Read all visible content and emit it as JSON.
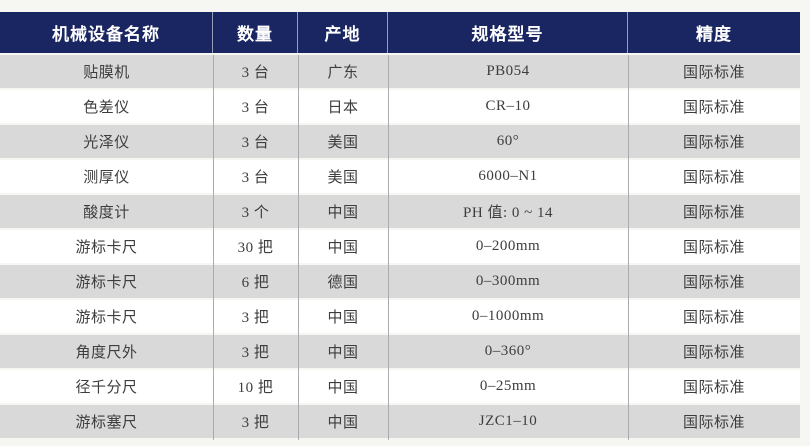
{
  "table": {
    "columns": [
      {
        "label": "机械设备名称"
      },
      {
        "label": "数量"
      },
      {
        "label": "产地"
      },
      {
        "label": "规格型号"
      },
      {
        "label": "精度"
      }
    ],
    "rows": [
      {
        "name": "贴膜机",
        "quantity": "3 台",
        "origin": "广东",
        "model": "PB054",
        "precision": "国际标准"
      },
      {
        "name": "色差仪",
        "quantity": "3 台",
        "origin": "日本",
        "model": "CR–10",
        "precision": "国际标准"
      },
      {
        "name": "光泽仪",
        "quantity": "3 台",
        "origin": "美国",
        "model": "60°",
        "precision": "国际标准"
      },
      {
        "name": "测厚仪",
        "quantity": "3 台",
        "origin": "美国",
        "model": "6000–N1",
        "precision": "国际标准"
      },
      {
        "name": "酸度计",
        "quantity": "3 个",
        "origin": "中国",
        "model": "PH 值: 0 ~ 14",
        "precision": "国际标准"
      },
      {
        "name": "游标卡尺",
        "quantity": "30 把",
        "origin": "中国",
        "model": "0–200mm",
        "precision": "国际标准"
      },
      {
        "name": "游标卡尺",
        "quantity": "6 把",
        "origin": "德国",
        "model": "0–300mm",
        "precision": "国际标准"
      },
      {
        "name": "游标卡尺",
        "quantity": "3 把",
        "origin": "中国",
        "model": "0–1000mm",
        "precision": "国际标准"
      },
      {
        "name": "角度尺外",
        "quantity": "3 把",
        "origin": "中国",
        "model": "0–360°",
        "precision": "国际标准"
      },
      {
        "name": "径千分尺",
        "quantity": "10 把",
        "origin": "中国",
        "model": "0–25mm",
        "precision": "国际标准"
      },
      {
        "name": "游标塞尺",
        "quantity": "3 把",
        "origin": "中国",
        "model": "JZC1–10",
        "precision": "国际标准"
      }
    ],
    "colors": {
      "page_bg": "#f6f6f2",
      "header_bg": "#1a2661",
      "header_text": "#ffffff",
      "row_bg": "#ffffff",
      "row_alt_bg": "#d9d9d9",
      "body_text": "#3d3d3d",
      "divider": "#ababab"
    }
  }
}
